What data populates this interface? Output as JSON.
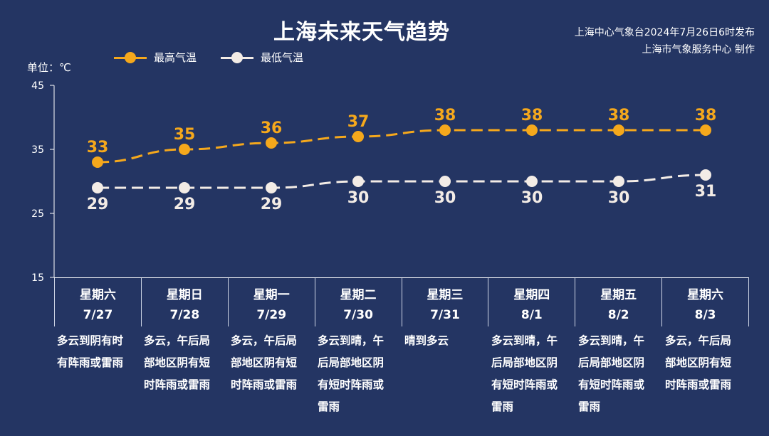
{
  "title": "上海未来天气趋势",
  "source": {
    "line1": "上海中心气象台2024年7月26日6时发布",
    "line2": "上海市气象服务中心 制作"
  },
  "unit_label": "单位：℃",
  "colors": {
    "background": "#243563",
    "high": "#f5a81c",
    "low": "#f3ece6",
    "axis": "#ffffff"
  },
  "chart_data": {
    "type": "line",
    "title": "上海未来天气趋势",
    "ylabel": "单位：℃",
    "ylim": [
      15,
      45
    ],
    "yticks": [
      15,
      25,
      35,
      45
    ],
    "grid": false,
    "legend_position": "top-left",
    "categories": [
      "7/27",
      "7/28",
      "7/29",
      "7/30",
      "7/31",
      "8/1",
      "8/2",
      "8/3"
    ],
    "weekdays": [
      "星期六",
      "星期日",
      "星期一",
      "星期二",
      "星期三",
      "星期四",
      "星期五",
      "星期六"
    ],
    "series": [
      {
        "name": "最高气温",
        "values": [
          33,
          35,
          36,
          37,
          38,
          38,
          38,
          38
        ]
      },
      {
        "name": "最低气温",
        "values": [
          29,
          29,
          29,
          30,
          30,
          30,
          30,
          31
        ]
      }
    ]
  },
  "forecast": [
    {
      "lines": [
        "多云到阴有时",
        "有阵雨或雷雨"
      ]
    },
    {
      "lines": [
        "多云，午后局",
        "部地区阴有短",
        "时阵雨或雷雨"
      ]
    },
    {
      "lines": [
        "多云，午后局",
        "部地区阴有短",
        "时阵雨或雷雨"
      ]
    },
    {
      "lines": [
        "多云到晴，午",
        "后局部地区阴",
        "有短时阵雨或",
        "雷雨"
      ]
    },
    {
      "lines": [
        "晴到多云"
      ]
    },
    {
      "lines": [
        "多云到晴，午",
        "后局部地区阴",
        "有短时阵雨或",
        "雷雨"
      ]
    },
    {
      "lines": [
        "多云到晴，午",
        "后局部地区阴",
        "有短时阵雨或",
        "雷雨"
      ]
    },
    {
      "lines": [
        "多云，午后局",
        "部地区阴有短",
        "时阵雨或雷雨"
      ]
    }
  ]
}
